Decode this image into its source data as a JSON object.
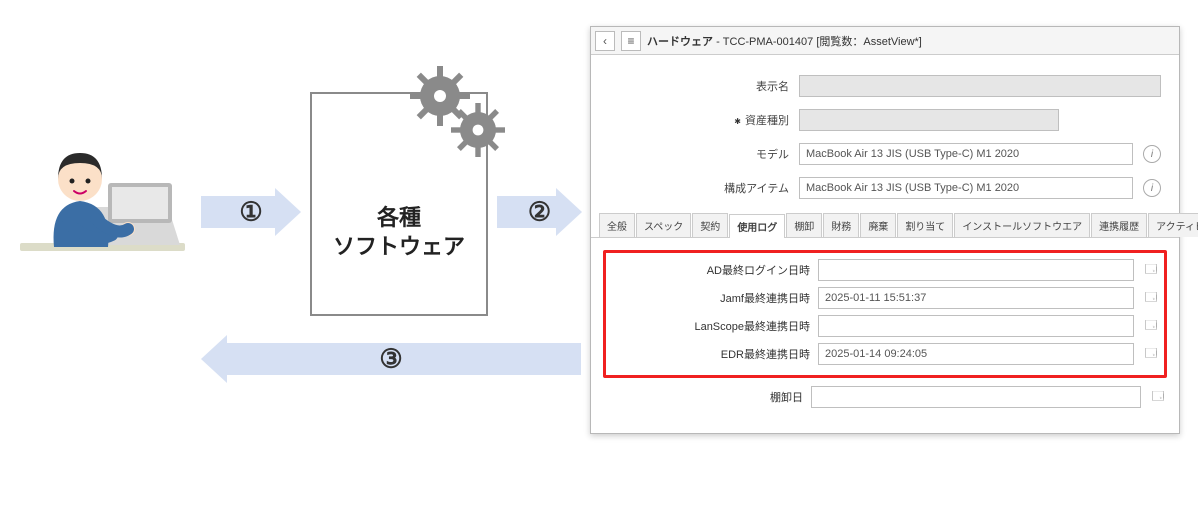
{
  "colors": {
    "arrow": "#d6e0f3",
    "highlight": "#f02020",
    "panel_border": "#b8b8b8",
    "field_border": "#bfbfbf"
  },
  "diagram": {
    "step1_label": "①",
    "step2_label": "②",
    "step3_label": "③",
    "software_box_line1": "各種",
    "software_box_line2": "ソフトウェア"
  },
  "panel": {
    "header_category": "ハードウェア",
    "header_record": "- TCC-PMA-001407 [閲覧数：AssetView*]",
    "fields": {
      "display_name": {
        "label": "表示名",
        "value": ""
      },
      "asset_type": {
        "label": "資産種別",
        "value": "",
        "required": true
      },
      "model": {
        "label": "モデル",
        "value": "MacBook Air 13 JIS (USB Type-C) M1 2020"
      },
      "ci": {
        "label": "構成アイテム",
        "value": "MacBook Air 13 JIS (USB Type-C) M1 2020"
      }
    },
    "tabs": [
      "全般",
      "スペック",
      "契約",
      "使用ログ",
      "棚卸",
      "財務",
      "廃棄",
      "割り当て",
      "インストールソフトウエア",
      "連携履歴",
      "アクティビティ"
    ],
    "active_tab_index": 3,
    "log_rows": [
      {
        "label": "AD最終ログイン日時",
        "value": ""
      },
      {
        "label": "Jamf最終連携日時",
        "value": "2025-01-11 15:51:37"
      },
      {
        "label": "LanScope最終連携日時",
        "value": ""
      },
      {
        "label": "EDR最終連携日時",
        "value": "2025-01-14 09:24:05"
      }
    ],
    "inventory_row": {
      "label": "棚卸日",
      "value": ""
    }
  }
}
